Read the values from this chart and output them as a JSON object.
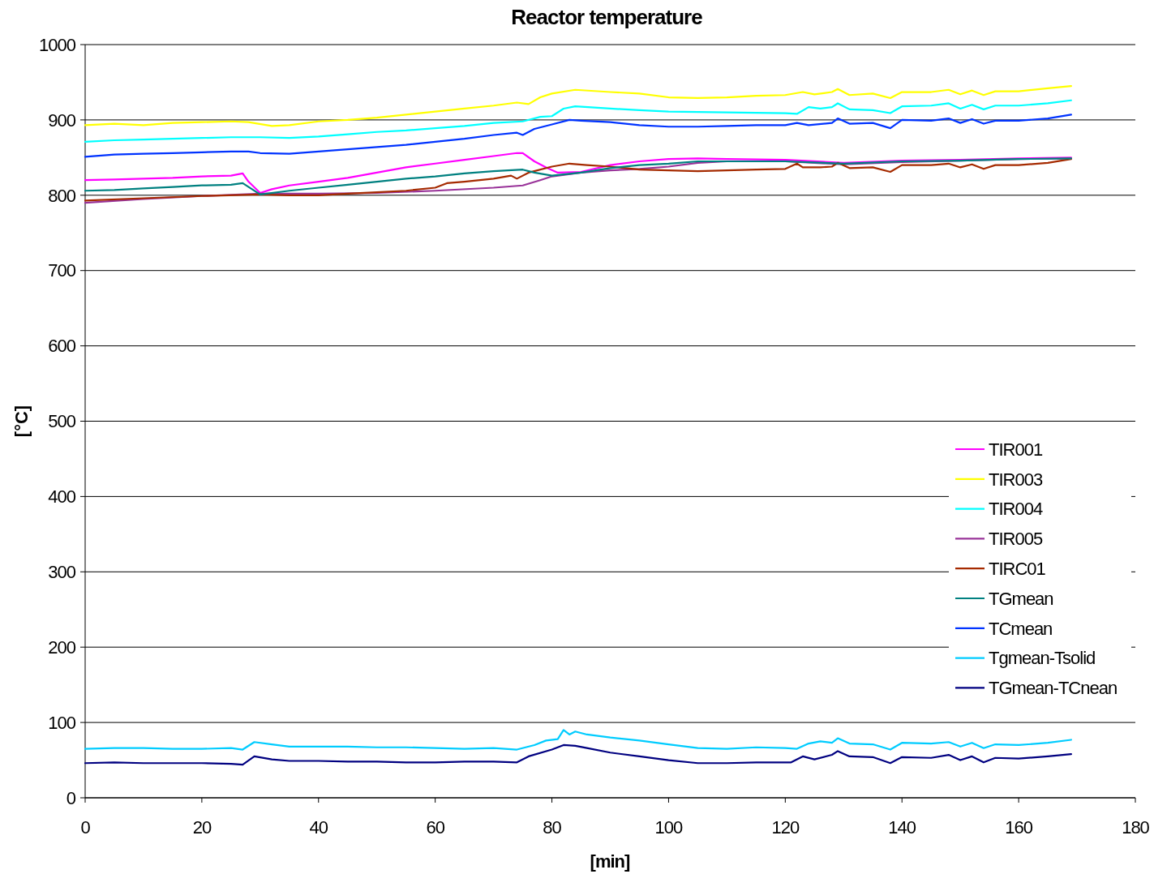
{
  "chart_data": {
    "type": "line",
    "title": "Reactor temperature",
    "xlabel": "[min]",
    "ylabel": "[°C]",
    "xlim": [
      0,
      180
    ],
    "xticks": [
      0,
      20,
      40,
      60,
      80,
      100,
      120,
      140,
      160,
      180
    ],
    "ylim": [
      0,
      1000
    ],
    "yticks": [
      0,
      100,
      200,
      300,
      400,
      500,
      600,
      700,
      800,
      900,
      1000
    ],
    "grid": "y",
    "legend": "right",
    "marker": "none",
    "line_style": "solid",
    "series": [
      {
        "name": "TIR001",
        "color": "#ff00ff",
        "x": [
          0,
          5,
          10,
          15,
          20,
          25,
          27,
          28,
          30,
          32,
          35,
          40,
          45,
          50,
          55,
          60,
          65,
          70,
          74,
          75,
          77,
          79,
          81,
          85,
          90,
          95,
          100,
          105,
          110,
          120,
          130,
          140,
          150,
          160,
          169
        ],
        "values": [
          820,
          821,
          822,
          823,
          825,
          826,
          829,
          818,
          803,
          808,
          813,
          818,
          823,
          830,
          837,
          842,
          847,
          852,
          856,
          856,
          845,
          837,
          830,
          831,
          840,
          845,
          848,
          849,
          848,
          847,
          843,
          846,
          847,
          849,
          850
        ]
      },
      {
        "name": "TIR003",
        "color": "#ffff00",
        "x": [
          0,
          5,
          10,
          15,
          20,
          25,
          28,
          32,
          35,
          40,
          45,
          50,
          55,
          60,
          65,
          70,
          74,
          76,
          78,
          80,
          84,
          90,
          95,
          100,
          105,
          110,
          115,
          120,
          123,
          125,
          128,
          129,
          131,
          135,
          138,
          140,
          145,
          148,
          150,
          152,
          154,
          156,
          160,
          165,
          169
        ],
        "values": [
          893,
          895,
          893,
          896,
          897,
          898,
          897,
          892,
          893,
          898,
          900,
          903,
          907,
          911,
          915,
          919,
          923,
          921,
          930,
          935,
          940,
          937,
          935,
          930,
          929,
          930,
          932,
          933,
          937,
          934,
          937,
          941,
          933,
          935,
          929,
          937,
          937,
          940,
          934,
          939,
          933,
          938,
          938,
          942,
          945
        ]
      },
      {
        "name": "TIR004",
        "color": "#00ffff",
        "x": [
          0,
          5,
          10,
          15,
          20,
          25,
          30,
          35,
          40,
          45,
          50,
          55,
          60,
          65,
          70,
          75,
          78,
          80,
          82,
          84,
          90,
          95,
          100,
          110,
          120,
          122,
          124,
          126,
          128,
          129,
          131,
          135,
          138,
          140,
          145,
          148,
          150,
          152,
          154,
          156,
          160,
          165,
          169
        ],
        "values": [
          871,
          873,
          874,
          875,
          876,
          877,
          877,
          876,
          878,
          881,
          884,
          886,
          889,
          892,
          896,
          898,
          904,
          905,
          915,
          918,
          915,
          913,
          911,
          910,
          909,
          908,
          917,
          915,
          917,
          922,
          914,
          913,
          909,
          918,
          919,
          922,
          915,
          920,
          914,
          919,
          919,
          922,
          926
        ]
      },
      {
        "name": "TIR005",
        "color": "#993399",
        "x": [
          0,
          10,
          20,
          30,
          40,
          50,
          60,
          70,
          75,
          78,
          80,
          85,
          90,
          95,
          100,
          105,
          110,
          120,
          130,
          140,
          150,
          160,
          169
        ],
        "values": [
          790,
          795,
          799,
          802,
          802,
          803,
          806,
          810,
          813,
          820,
          825,
          830,
          833,
          835,
          838,
          843,
          845,
          845,
          841,
          844,
          846,
          848,
          849
        ]
      },
      {
        "name": "TIRC01",
        "color": "#a52a00",
        "x": [
          0,
          10,
          20,
          30,
          35,
          40,
          45,
          50,
          55,
          60,
          62,
          65,
          70,
          73,
          74,
          76,
          80,
          83,
          86,
          90,
          95,
          100,
          105,
          110,
          115,
          120,
          122,
          123,
          126,
          128,
          129,
          131,
          135,
          138,
          140,
          145,
          148,
          150,
          152,
          154,
          156,
          160,
          165,
          169
        ],
        "values": [
          793,
          796,
          799,
          801,
          800,
          800,
          802,
          804,
          806,
          810,
          816,
          818,
          822,
          826,
          822,
          830,
          838,
          842,
          840,
          838,
          834,
          833,
          832,
          833,
          834,
          835,
          842,
          837,
          837,
          838,
          843,
          836,
          837,
          831,
          840,
          840,
          842,
          837,
          841,
          835,
          840,
          840,
          843,
          848
        ]
      },
      {
        "name": "TGmean",
        "color": "#008080",
        "x": [
          0,
          5,
          10,
          15,
          20,
          25,
          27,
          30,
          35,
          40,
          45,
          50,
          55,
          60,
          65,
          70,
          75,
          77,
          80,
          85,
          90,
          95,
          100,
          105,
          110,
          120,
          130,
          140,
          150,
          160,
          169
        ],
        "values": [
          806,
          807,
          809,
          811,
          813,
          814,
          816,
          801,
          806,
          810,
          814,
          818,
          822,
          825,
          829,
          832,
          834,
          830,
          826,
          830,
          836,
          840,
          842,
          845,
          845,
          845,
          842,
          845,
          846,
          848,
          849
        ]
      },
      {
        "name": "TCmean",
        "color": "#0033ff",
        "x": [
          0,
          5,
          10,
          15,
          20,
          25,
          28,
          30,
          35,
          40,
          45,
          50,
          55,
          60,
          65,
          70,
          74,
          75,
          77,
          80,
          83,
          85,
          90,
          95,
          100,
          105,
          110,
          115,
          120,
          122,
          124,
          128,
          129,
          131,
          135,
          138,
          140,
          145,
          148,
          150,
          152,
          154,
          156,
          160,
          165,
          169
        ],
        "values": [
          851,
          854,
          855,
          856,
          857,
          858,
          858,
          856,
          855,
          858,
          861,
          864,
          867,
          871,
          875,
          880,
          883,
          880,
          888,
          894,
          900,
          899,
          897,
          893,
          891,
          891,
          892,
          893,
          893,
          896,
          893,
          896,
          902,
          895,
          896,
          889,
          900,
          899,
          902,
          896,
          901,
          895,
          899,
          899,
          902,
          907
        ]
      },
      {
        "name": "Tgmean-Tsolid",
        "color": "#00ccff",
        "x": [
          0,
          5,
          10,
          15,
          20,
          25,
          27,
          29,
          32,
          35,
          40,
          45,
          50,
          55,
          60,
          65,
          70,
          74,
          77,
          79,
          81,
          82,
          83,
          84,
          86,
          90,
          95,
          100,
          105,
          110,
          115,
          120,
          122,
          124,
          126,
          128,
          129,
          131,
          135,
          138,
          140,
          145,
          148,
          150,
          152,
          154,
          156,
          160,
          165,
          169
        ],
        "values": [
          65,
          66,
          66,
          65,
          65,
          66,
          64,
          74,
          71,
          68,
          68,
          68,
          67,
          67,
          66,
          65,
          66,
          64,
          70,
          76,
          78,
          90,
          84,
          88,
          84,
          80,
          76,
          71,
          66,
          65,
          67,
          66,
          65,
          72,
          75,
          73,
          79,
          72,
          71,
          64,
          73,
          72,
          74,
          68,
          73,
          66,
          71,
          70,
          73,
          77
        ]
      },
      {
        "name": "TGmean-TCnean",
        "color": "#000080",
        "x": [
          0,
          5,
          10,
          15,
          20,
          25,
          27,
          29,
          32,
          35,
          40,
          45,
          50,
          55,
          60,
          65,
          70,
          74,
          76,
          80,
          82,
          84,
          86,
          90,
          95,
          100,
          105,
          110,
          115,
          120,
          121,
          123,
          125,
          128,
          129,
          131,
          135,
          138,
          140,
          145,
          148,
          150,
          152,
          154,
          156,
          160,
          165,
          169
        ],
        "values": [
          46,
          47,
          46,
          46,
          46,
          45,
          44,
          55,
          51,
          49,
          49,
          48,
          48,
          47,
          47,
          48,
          48,
          47,
          55,
          64,
          70,
          69,
          66,
          60,
          55,
          50,
          46,
          46,
          47,
          47,
          47,
          55,
          51,
          57,
          62,
          55,
          54,
          46,
          54,
          53,
          57,
          50,
          55,
          47,
          53,
          52,
          55,
          58
        ]
      }
    ]
  }
}
